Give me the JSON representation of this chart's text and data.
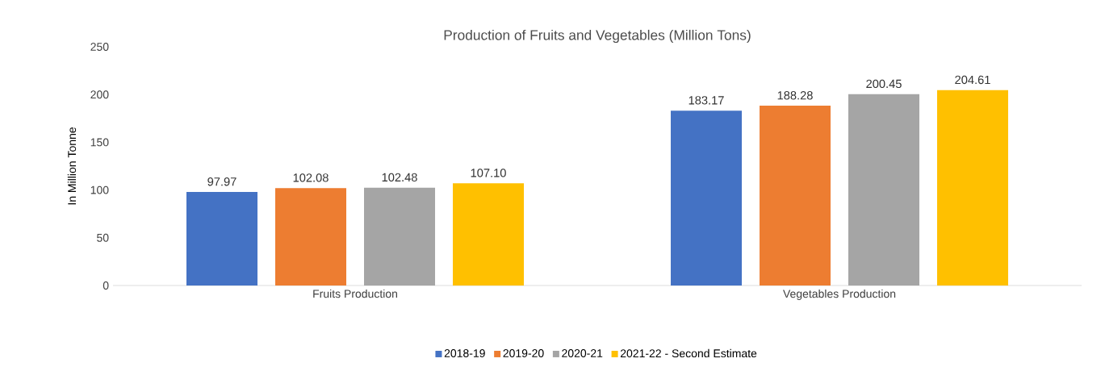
{
  "chart_data": {
    "type": "bar",
    "title": "Production of Fruits and Vegetables (Million Tons)",
    "ylabel": "In Million Tonne",
    "categories": [
      "Fruits Production",
      "Vegetables Production"
    ],
    "series": [
      {
        "name": "2018-19",
        "color": "#4472c4",
        "values": [
          97.97,
          183.17
        ],
        "value_labels": [
          "97.97",
          "183.17"
        ]
      },
      {
        "name": "2019-20",
        "color": "#ed7d31",
        "values": [
          102.08,
          188.28
        ],
        "value_labels": [
          "102.08",
          "188.28"
        ]
      },
      {
        "name": "2020-21",
        "color": "#a5a5a5",
        "values": [
          102.48,
          200.45
        ],
        "value_labels": [
          "102.48",
          "200.45"
        ]
      },
      {
        "name": "2021-22 - Second Estimate",
        "color": "#ffc000",
        "values": [
          107.1,
          204.61
        ],
        "value_labels": [
          "107.10",
          "204.61"
        ]
      }
    ],
    "ylim": [
      0,
      250
    ],
    "yticks": [
      0,
      50,
      100,
      150,
      200,
      250
    ],
    "legend": "bottom"
  }
}
